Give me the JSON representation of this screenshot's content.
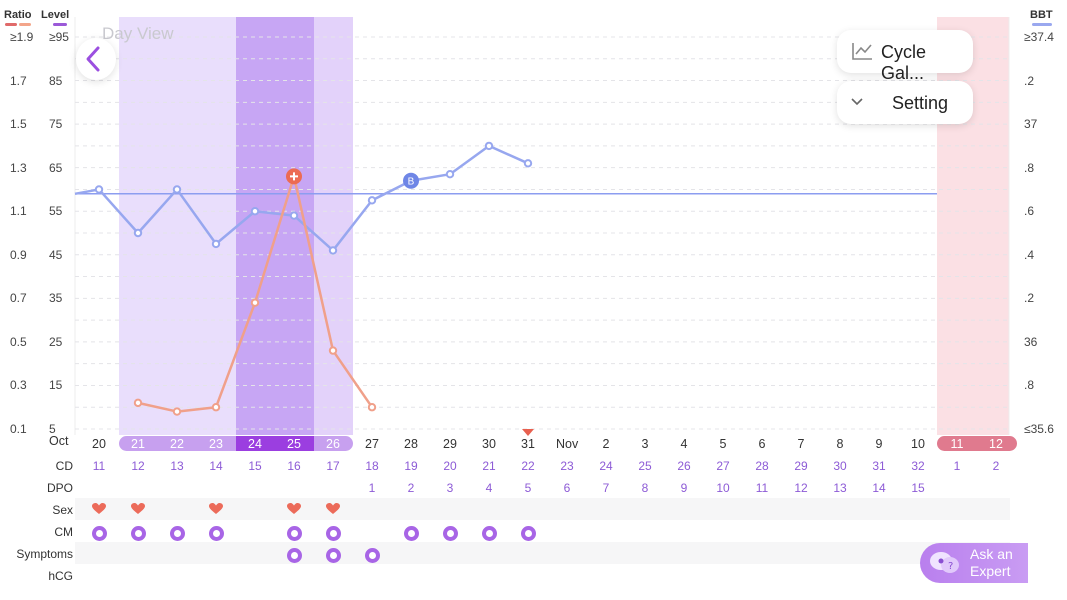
{
  "header": {
    "ratio_label": "Ratio",
    "level_label": "Level",
    "bbt_label": "BBT",
    "ratio_color": "#e06a6a",
    "level_color": "#f3a58a",
    "bbt_color": "#9aa8ef"
  },
  "view_title": "Day View",
  "ratio_ticks": [
    "≥1.9",
    "1.7",
    "1.5",
    "1.3",
    "1.1",
    "0.9",
    "0.7",
    "0.5",
    "0.3",
    "0.1"
  ],
  "level_ticks": [
    "≥95",
    "85",
    "75",
    "65",
    "55",
    "45",
    "35",
    "25",
    "15",
    "5"
  ],
  "bbt_ticks": [
    "≥37.4",
    ".2",
    "37",
    ".8",
    ".6",
    ".4",
    ".2",
    "36",
    ".8",
    "≤35.6"
  ],
  "buttons": {
    "back_icon": "chevron-left-icon",
    "cycle_gallery": "Cycle Gal...",
    "setting": "Setting",
    "ask_expert_line1": "Ask an",
    "ask_expert_line2": "Expert"
  },
  "months": {
    "oct": "Oct",
    "nov": "Nov"
  },
  "dates": [
    "20",
    "21",
    "22",
    "23",
    "24",
    "25",
    "26",
    "27",
    "28",
    "29",
    "30",
    "31",
    "",
    "2",
    "3",
    "4",
    "5",
    "6",
    "7",
    "8",
    "9",
    "10",
    "11",
    "12"
  ],
  "cd": [
    "11",
    "12",
    "13",
    "14",
    "15",
    "16",
    "17",
    "18",
    "19",
    "20",
    "21",
    "22",
    "23",
    "24",
    "25",
    "26",
    "27",
    "28",
    "29",
    "30",
    "31",
    "32",
    "1",
    "2"
  ],
  "dpo": [
    "",
    "",
    "",
    "",
    "",
    "",
    "",
    "1",
    "2",
    "3",
    "4",
    "5",
    "6",
    "7",
    "8",
    "9",
    "10",
    "11",
    "12",
    "13",
    "14",
    "15",
    "",
    ""
  ],
  "row_labels": {
    "cd": "CD",
    "dpo": "DPO",
    "sex": "Sex",
    "cm": "CM",
    "symptoms": "Symptoms",
    "hcg": "hCG"
  },
  "sex_days": [
    0,
    1,
    3,
    5,
    6
  ],
  "cm_days": [
    0,
    1,
    2,
    3,
    5,
    6,
    8,
    9,
    10,
    11
  ],
  "symptom_days": [
    5,
    6,
    7
  ],
  "bbt_marker": "B",
  "chart_data": {
    "type": "line",
    "x": [
      "Oct 20",
      "Oct 21",
      "Oct 22",
      "Oct 23",
      "Oct 24",
      "Oct 25",
      "Oct 26",
      "Oct 27",
      "Oct 28",
      "Oct 29",
      "Oct 30",
      "Oct 31"
    ],
    "series": [
      {
        "values": [
          36.7,
          36.5,
          36.7,
          36.45,
          36.6,
          36.58,
          36.42,
          36.65,
          36.74,
          36.77,
          36.9,
          36.82
        ]
      },
      {
        "values": [
          null,
          11,
          9,
          10,
          34,
          63,
          23,
          10,
          null,
          null,
          null,
          null
        ]
      }
    ],
    "coverline": 36.68,
    "ylim_level": [
      5,
      95
    ],
    "ylim_ratio": [
      0.1,
      1.9
    ],
    "ylim_bbt": [
      35.6,
      37.4
    ],
    "grid": true
  }
}
